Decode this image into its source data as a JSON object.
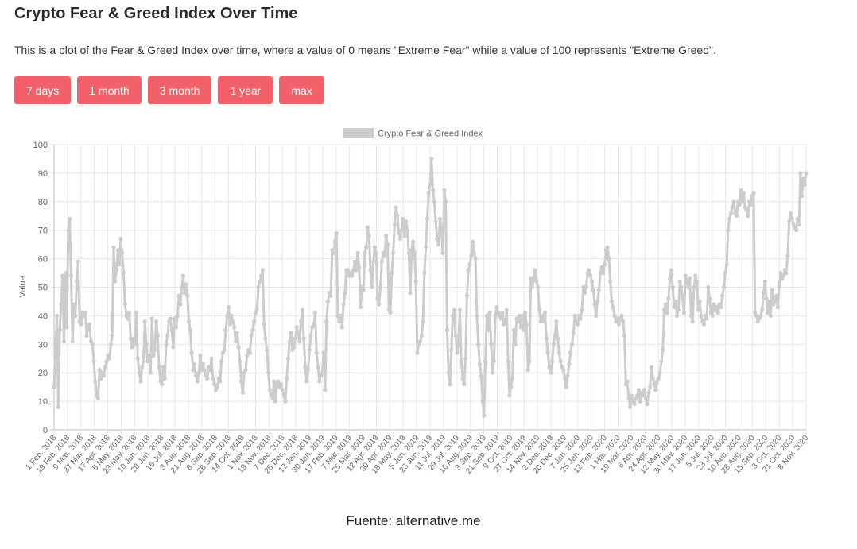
{
  "page": {
    "title": "Crypto Fear & Greed Index Over Time",
    "description": "This is a plot of the Fear & Greed Index over time, where a value of 0 means \"Extreme Fear\" while a value of 100 represents \"Extreme Greed\".",
    "buttons": [
      "7 days",
      "1 month",
      "3 month",
      "1 year",
      "max"
    ],
    "button_color": "#f2606a",
    "source": "Fuente: alternative.me"
  },
  "chart_data": {
    "type": "line",
    "title": "",
    "xlabel": "",
    "ylabel": "Value",
    "ylim": [
      0,
      100
    ],
    "yticks": [
      0,
      10,
      20,
      30,
      40,
      50,
      60,
      70,
      80,
      90,
      100
    ],
    "grid": true,
    "legend": {
      "position": "top",
      "entries": [
        "Crypto Fear & Greed Index"
      ]
    },
    "series_color": "#cccccc",
    "x_tick_labels": [
      "1 Feb. 2018",
      "19 Feb. 2018",
      "9 Mar. 2018",
      "27 Mar. 2018",
      "17 Apr. 2018",
      "5 May. 2018",
      "23 May. 2018",
      "10 Jun. 2018",
      "28 Jun. 2018",
      "16 Jul. 2018",
      "3 Aug. 2018",
      "21 Aug. 2018",
      "8 Sep. 2018",
      "26 Sep. 2018",
      "14 Oct. 2018",
      "1 Nov. 2018",
      "19 Nov. 2018",
      "7 Dec. 2018",
      "25 Dec. 2018",
      "12 Jan. 2019",
      "30 Jan. 2019",
      "17 Feb. 2019",
      "7 Mar. 2019",
      "25 Mar. 2019",
      "12 Apr. 2019",
      "30 Apr. 2019",
      "18 May. 2019",
      "5 Jun. 2019",
      "23 Jun. 2019",
      "11 Jul. 2019",
      "29 Jul. 2019",
      "16 Aug. 2019",
      "3 Sep. 2019",
      "21 Sep. 2019",
      "9 Oct. 2019",
      "27 Oct. 2019",
      "14 Nov. 2019",
      "2 Dec. 2019",
      "20 Dec. 2019",
      "7 Jan. 2020",
      "25 Jan. 2020",
      "12 Feb. 2020",
      "1 Mar. 2020",
      "19 Mar. 2020",
      "6 Apr. 2020",
      "24 Apr. 2020",
      "12 May. 2020",
      "30 May. 2020",
      "17 Jun. 2020",
      "5 Jul. 2020",
      "23 Jul. 2020",
      "10 Aug. 2020",
      "28 Aug. 2020",
      "15 Sep. 2020",
      "3 Oct. 2020",
      "21 Oct. 2020",
      "8 Nov. 2020"
    ],
    "series": [
      {
        "name": "Crypto Fear & Greed Index",
        "values": [
          15,
          30,
          40,
          8,
          35,
          44,
          54,
          31,
          55,
          36,
          70,
          74,
          54,
          31,
          44,
          40,
          52,
          59,
          38,
          37,
          41,
          40,
          41,
          33,
          36,
          37,
          31,
          30,
          24,
          17,
          12,
          11,
          21,
          18,
          20,
          19,
          22,
          24,
          26,
          25,
          30,
          33,
          64,
          52,
          56,
          63,
          58,
          67,
          62,
          55,
          44,
          40,
          39,
          41,
          32,
          29,
          32,
          30,
          41,
          25,
          20,
          17,
          22,
          24,
          38,
          30,
          24,
          26,
          20,
          39,
          26,
          28,
          38,
          33,
          22,
          17,
          16,
          22,
          18,
          30,
          33,
          38,
          39,
          35,
          29,
          39,
          36,
          40,
          47,
          44,
          50,
          54,
          48,
          51,
          47,
          38,
          35,
          27,
          21,
          23,
          19,
          17,
          20,
          26,
          21,
          23,
          21,
          19,
          18,
          22,
          21,
          25,
          18,
          16,
          14,
          15,
          18,
          17,
          24,
          27,
          28,
          35,
          40,
          43,
          37,
          40,
          38,
          36,
          31,
          34,
          29,
          24,
          17,
          13,
          20,
          21,
          26,
          28,
          27,
          33,
          35,
          38,
          41,
          42,
          50,
          52,
          54,
          56,
          37,
          32,
          28,
          20,
          14,
          12,
          11,
          17,
          10,
          16,
          17,
          15,
          16,
          14,
          12,
          10,
          18,
          25,
          31,
          34,
          28,
          29,
          32,
          36,
          34,
          31,
          38,
          42,
          32,
          22,
          17,
          21,
          28,
          33,
          36,
          37,
          41,
          27,
          22,
          17,
          19,
          20,
          27,
          14,
          38,
          45,
          48,
          47,
          63,
          62,
          66,
          69,
          40,
          38,
          40,
          36,
          44,
          48,
          56,
          56,
          54,
          55,
          54,
          56,
          59,
          56,
          62,
          57,
          43,
          50,
          49,
          62,
          64,
          71,
          68,
          56,
          50,
          59,
          64,
          62,
          46,
          44,
          50,
          59,
          62,
          61,
          68,
          65,
          42,
          41,
          55,
          62,
          72,
          78,
          75,
          69,
          67,
          70,
          74,
          68,
          73,
          70,
          62,
          48,
          63,
          66,
          62,
          52,
          27,
          30,
          31,
          33,
          38,
          55,
          64,
          74,
          83,
          86,
          95,
          84,
          80,
          73,
          67,
          65,
          74,
          70,
          62,
          84,
          80,
          35,
          20,
          16,
          28,
          40,
          42,
          33,
          27,
          30,
          42,
          24,
          18,
          16,
          25,
          47,
          56,
          58,
          61,
          66,
          62,
          60,
          40,
          30,
          23,
          19,
          10,
          5,
          24,
          40,
          35,
          41,
          30,
          20,
          24,
          40,
          43,
          41,
          40,
          39,
          41,
          37,
          38,
          42,
          24,
          12,
          15,
          18,
          35,
          30,
          39,
          38,
          40,
          36,
          40,
          35,
          41,
          37,
          21,
          24,
          53,
          50,
          53,
          56,
          52,
          50,
          42,
          38,
          40,
          38,
          41,
          32,
          27,
          22,
          20,
          24,
          30,
          33,
          38,
          32,
          27,
          24,
          22,
          21,
          18,
          15,
          19,
          23,
          27,
          30,
          34,
          40,
          38,
          37,
          40,
          39,
          42,
          50,
          48,
          50,
          55,
          56,
          54,
          52,
          49,
          44,
          40,
          45,
          49,
          55,
          57,
          55,
          58,
          63,
          64,
          60,
          52,
          45,
          43,
          40,
          38,
          39,
          37,
          39,
          40,
          38,
          33,
          16,
          17,
          11,
          8,
          12,
          10,
          9,
          11,
          12,
          14,
          10,
          13,
          12,
          14,
          11,
          9,
          13,
          15,
          22,
          18,
          16,
          14,
          17,
          18,
          20,
          24,
          28,
          42,
          44,
          41,
          46,
          53,
          56,
          50,
          43,
          45,
          40,
          42,
          52,
          50,
          46,
          41,
          54,
          52,
          50,
          53,
          40,
          38,
          50,
          54,
          52,
          42,
          45,
          40,
          38,
          37,
          40,
          39,
          50,
          46,
          41,
          40,
          44,
          42,
          43,
          41,
          44,
          43,
          47,
          50,
          55,
          58,
          70,
          74,
          76,
          78,
          80,
          76,
          75,
          80,
          79,
          84,
          80,
          83,
          78,
          77,
          75,
          80,
          79,
          82,
          83,
          41,
          40,
          38,
          39,
          40,
          42,
          48,
          52,
          46,
          41,
          45,
          40,
          49,
          44,
          45,
          47,
          43,
          50,
          55,
          53,
          54,
          56,
          55,
          61,
          73,
          76,
          74,
          72,
          71,
          70,
          74,
          72,
          90,
          82,
          88,
          86,
          90
        ]
      }
    ]
  }
}
